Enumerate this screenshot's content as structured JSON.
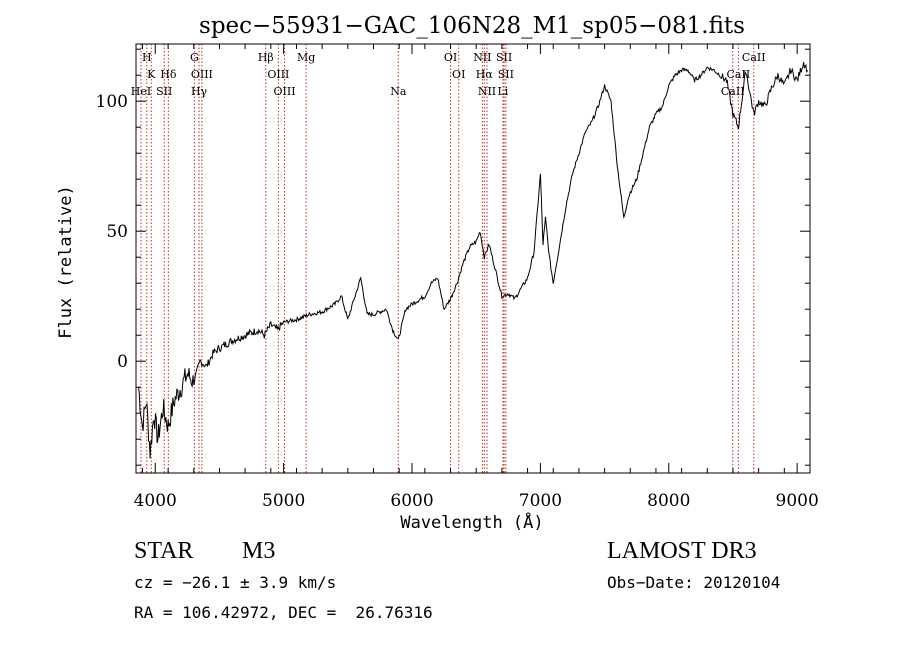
{
  "chart_data": {
    "type": "line",
    "title": "spec−55931−GAC_106N28_M1_sp05−081.fits",
    "xlabel": "Wavelength (Å)",
    "ylabel": "Flux (relative)",
    "xlim": [
      3850,
      9100
    ],
    "ylim": [
      -43,
      122
    ],
    "x_ticks": [
      4000,
      5000,
      6000,
      7000,
      8000,
      9000
    ],
    "x_tick_labels": [
      "4000",
      "5000",
      "6000",
      "7000",
      "8000",
      "9000"
    ],
    "y_ticks": [
      0,
      50,
      100
    ],
    "y_tick_labels": [
      "0",
      "50",
      "100"
    ],
    "grid": false,
    "series": [
      {
        "name": "spectrum",
        "x": [
          3870,
          3900,
          3930,
          3960,
          3990,
          4020,
          4060,
          4100,
          4150,
          4200,
          4250,
          4300,
          4350,
          4400,
          4450,
          4500,
          4600,
          4700,
          4800,
          4850,
          4900,
          4950,
          5000,
          5100,
          5200,
          5300,
          5400,
          5450,
          5500,
          5550,
          5600,
          5650,
          5700,
          5800,
          5850,
          5893,
          5950,
          6000,
          6100,
          6150,
          6200,
          6250,
          6300,
          6350,
          6400,
          6450,
          6500,
          6530,
          6563,
          6600,
          6650,
          6700,
          6750,
          6800,
          6850,
          6900,
          6950,
          7000,
          7020,
          7040,
          7070,
          7100,
          7150,
          7200,
          7250,
          7300,
          7350,
          7400,
          7450,
          7500,
          7550,
          7600,
          7650,
          7680,
          7700,
          7750,
          7800,
          7850,
          7900,
          7950,
          8000,
          8050,
          8100,
          8150,
          8200,
          8250,
          8300,
          8350,
          8400,
          8450,
          8500,
          8542,
          8600,
          8662,
          8700,
          8750,
          8800,
          8850,
          8900,
          8950,
          9000,
          9050,
          9080
        ],
        "y": [
          -10,
          -25,
          -15,
          -35,
          -20,
          -30,
          -18,
          -25,
          -15,
          -10,
          -5,
          -8,
          0,
          -2,
          3,
          5,
          8,
          10,
          12,
          10,
          14,
          12,
          15,
          16,
          18,
          19,
          22,
          25,
          16,
          24,
          32,
          18,
          18,
          20,
          12,
          8,
          20,
          22,
          25,
          30,
          32,
          20,
          24,
          30,
          38,
          44,
          46,
          50,
          40,
          45,
          35,
          25,
          26,
          24,
          28,
          32,
          42,
          72,
          45,
          55,
          40,
          30,
          45,
          60,
          72,
          80,
          88,
          92,
          98,
          106,
          100,
          75,
          55,
          62,
          65,
          70,
          80,
          90,
          95,
          98,
          106,
          110,
          112,
          112,
          108,
          110,
          113,
          112,
          110,
          108,
          95,
          90,
          112,
          95,
          100,
          98,
          105,
          110,
          106,
          112,
          108,
          115,
          112
        ]
      }
    ],
    "spectral_lines": [
      {
        "label": "H",
        "wl": 3934,
        "row": 0
      },
      {
        "label": "K",
        "wl": 3969,
        "row": 1
      },
      {
        "label": "HeI",
        "wl": 3889,
        "row": 2
      },
      {
        "label": "SII",
        "wl": 4070,
        "row": 2
      },
      {
        "label": "Hδ",
        "wl": 4102,
        "row": 1
      },
      {
        "label": "G",
        "wl": 4305,
        "row": 0
      },
      {
        "label": "OIII",
        "wl": 4363,
        "row": 1
      },
      {
        "label": "Hγ",
        "wl": 4341,
        "row": 2
      },
      {
        "label": "Hβ",
        "wl": 4861,
        "row": 0
      },
      {
        "label": "OIII",
        "wl": 4959,
        "row": 1
      },
      {
        "label": "OIII",
        "wl": 5007,
        "row": 2
      },
      {
        "label": "Mg",
        "wl": 5175,
        "row": 0
      },
      {
        "label": "Na",
        "wl": 5893,
        "row": 2
      },
      {
        "label": "OI",
        "wl": 6300,
        "row": 0
      },
      {
        "label": "OI",
        "wl": 6364,
        "row": 1
      },
      {
        "label": "NII",
        "wl": 6548,
        "row": 0
      },
      {
        "label": "Hα",
        "wl": 6563,
        "row": 1
      },
      {
        "label": "NII",
        "wl": 6584,
        "row": 2
      },
      {
        "label": "SII",
        "wl": 6717,
        "row": 0
      },
      {
        "label": "SII",
        "wl": 6731,
        "row": 1
      },
      {
        "label": "Li",
        "wl": 6708,
        "row": 2
      },
      {
        "label": "CaII",
        "wl": 8662,
        "row": 0
      },
      {
        "label": "CaII",
        "wl": 8542,
        "row": 1
      },
      {
        "label": "CaII",
        "wl": 8498,
        "row": 2
      }
    ]
  },
  "info": {
    "object_class": "STAR",
    "subclass": "M3",
    "survey": "LAMOST DR3",
    "cz": "cz = −26.1 ± 3.9 km/s",
    "obs_date": "Obs−Date: 20120104",
    "coords": "RA = 106.42972, DEC =  26.76316"
  },
  "colors": {
    "line": "#000000",
    "axes": "#000000",
    "marker": "#c03020",
    "background": "#ffffff"
  }
}
